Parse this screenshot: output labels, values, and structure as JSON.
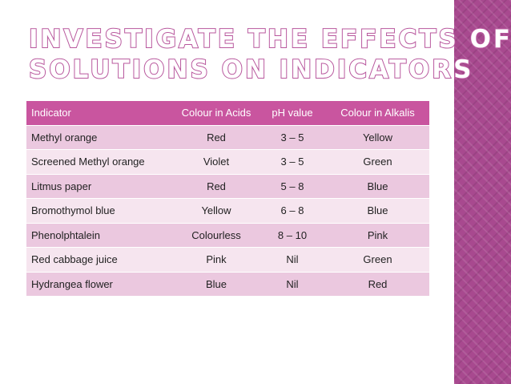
{
  "slide": {
    "title_line1": "Investigate the effects of",
    "title_line2": "solutions on indicators"
  },
  "table": {
    "headers": [
      "Indicator",
      "Colour in Acids",
      "pH value",
      "Colour in Alkalis"
    ],
    "rows": [
      [
        "Methyl orange",
        "Red",
        "3 – 5",
        "Yellow"
      ],
      [
        "Screened Methyl orange",
        "Violet",
        "3 – 5",
        "Green"
      ],
      [
        "Litmus paper",
        "Red",
        "5 – 8",
        "Blue"
      ],
      [
        "Bromothymol blue",
        "Yellow",
        "6 – 8",
        "Blue"
      ],
      [
        "Phenolphtalein",
        "Colourless",
        "8 – 10",
        "Pink"
      ],
      [
        "Red cabbage juice",
        "Pink",
        "Nil",
        "Green"
      ],
      [
        "Hydrangea flower",
        "Blue",
        "Nil",
        "Red"
      ]
    ]
  },
  "theme": {
    "accent": "#c9559f",
    "sidebar": "#a8498f",
    "row_dark": "#ebc8df",
    "row_light": "#f6e5ef"
  }
}
